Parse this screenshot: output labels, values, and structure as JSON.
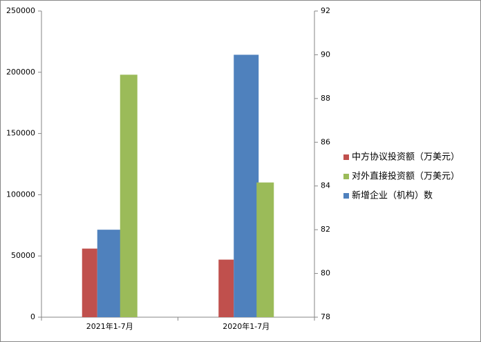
{
  "chart_data": {
    "type": "bar",
    "categories": [
      "2021年1-7月",
      "2020年1-7月"
    ],
    "series": [
      {
        "name": "中方协议投资额（万美元）",
        "color": "#c0504d",
        "values": [
          56000,
          47000
        ]
      },
      {
        "name": "对外直接投资额（万美元）",
        "color": "#9bbb59",
        "values": [
          198000,
          110000
        ]
      },
      {
        "name": "新增企业（机构）数",
        "color": "#4f81bd",
        "values": [
          82,
          90
        ],
        "axis": "y2"
      }
    ],
    "ylim": [
      0,
      250000
    ],
    "yticks": [
      0,
      50000,
      100000,
      150000,
      200000,
      250000
    ],
    "y2lim": [
      78,
      92
    ],
    "y2ticks": [
      78,
      80,
      82,
      84,
      86,
      88,
      90,
      92
    ],
    "legend": "right"
  }
}
